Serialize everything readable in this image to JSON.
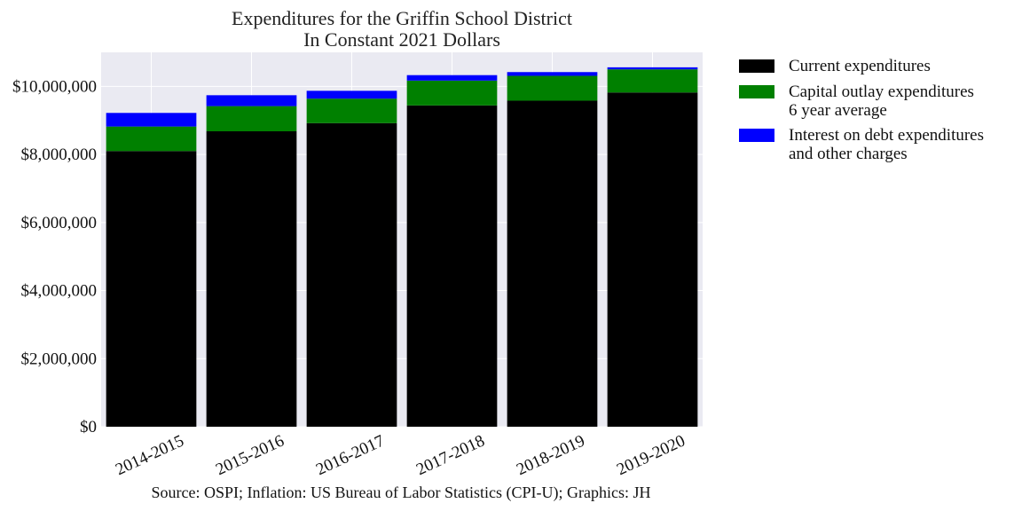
{
  "chart_data": {
    "type": "bar",
    "stacked": true,
    "title": [
      "Expenditures for the Griffin School District",
      "In Constant 2021 Dollars"
    ],
    "xlabel": "",
    "ylabel": "",
    "categories": [
      "2014-2015",
      "2015-2016",
      "2016-2017",
      "2017-2018",
      "2018-2019",
      "2019-2020"
    ],
    "series": [
      {
        "name": [
          "Current expenditures"
        ],
        "color": "#000000",
        "values": [
          8100000,
          8680000,
          8920000,
          9440000,
          9580000,
          9820000
        ]
      },
      {
        "name": [
          "Capital outlay expenditures",
          "6 year average"
        ],
        "color": "#008000",
        "values": [
          720000,
          740000,
          720000,
          730000,
          730000,
          680000
        ]
      },
      {
        "name": [
          "Interest on debt expenditures",
          "and other charges"
        ],
        "color": "#0000ff",
        "values": [
          400000,
          320000,
          230000,
          160000,
          110000,
          60000
        ]
      }
    ],
    "ylim": [
      0,
      11000000
    ],
    "yticks": [
      0,
      2000000,
      4000000,
      6000000,
      8000000,
      10000000
    ],
    "ytick_labels": [
      "$0",
      "$2,000,000",
      "$4,000,000",
      "$6,000,000",
      "$8,000,000",
      "$10,000,000"
    ],
    "grid": true,
    "legend_position": "outside-right",
    "colors": {
      "plot_background": "#eaeaf2",
      "grid": "#ffffff"
    },
    "source": "Source: OSPI; Inflation: US Bureau of Labor Statistics (CPI-U); Graphics: JH"
  }
}
